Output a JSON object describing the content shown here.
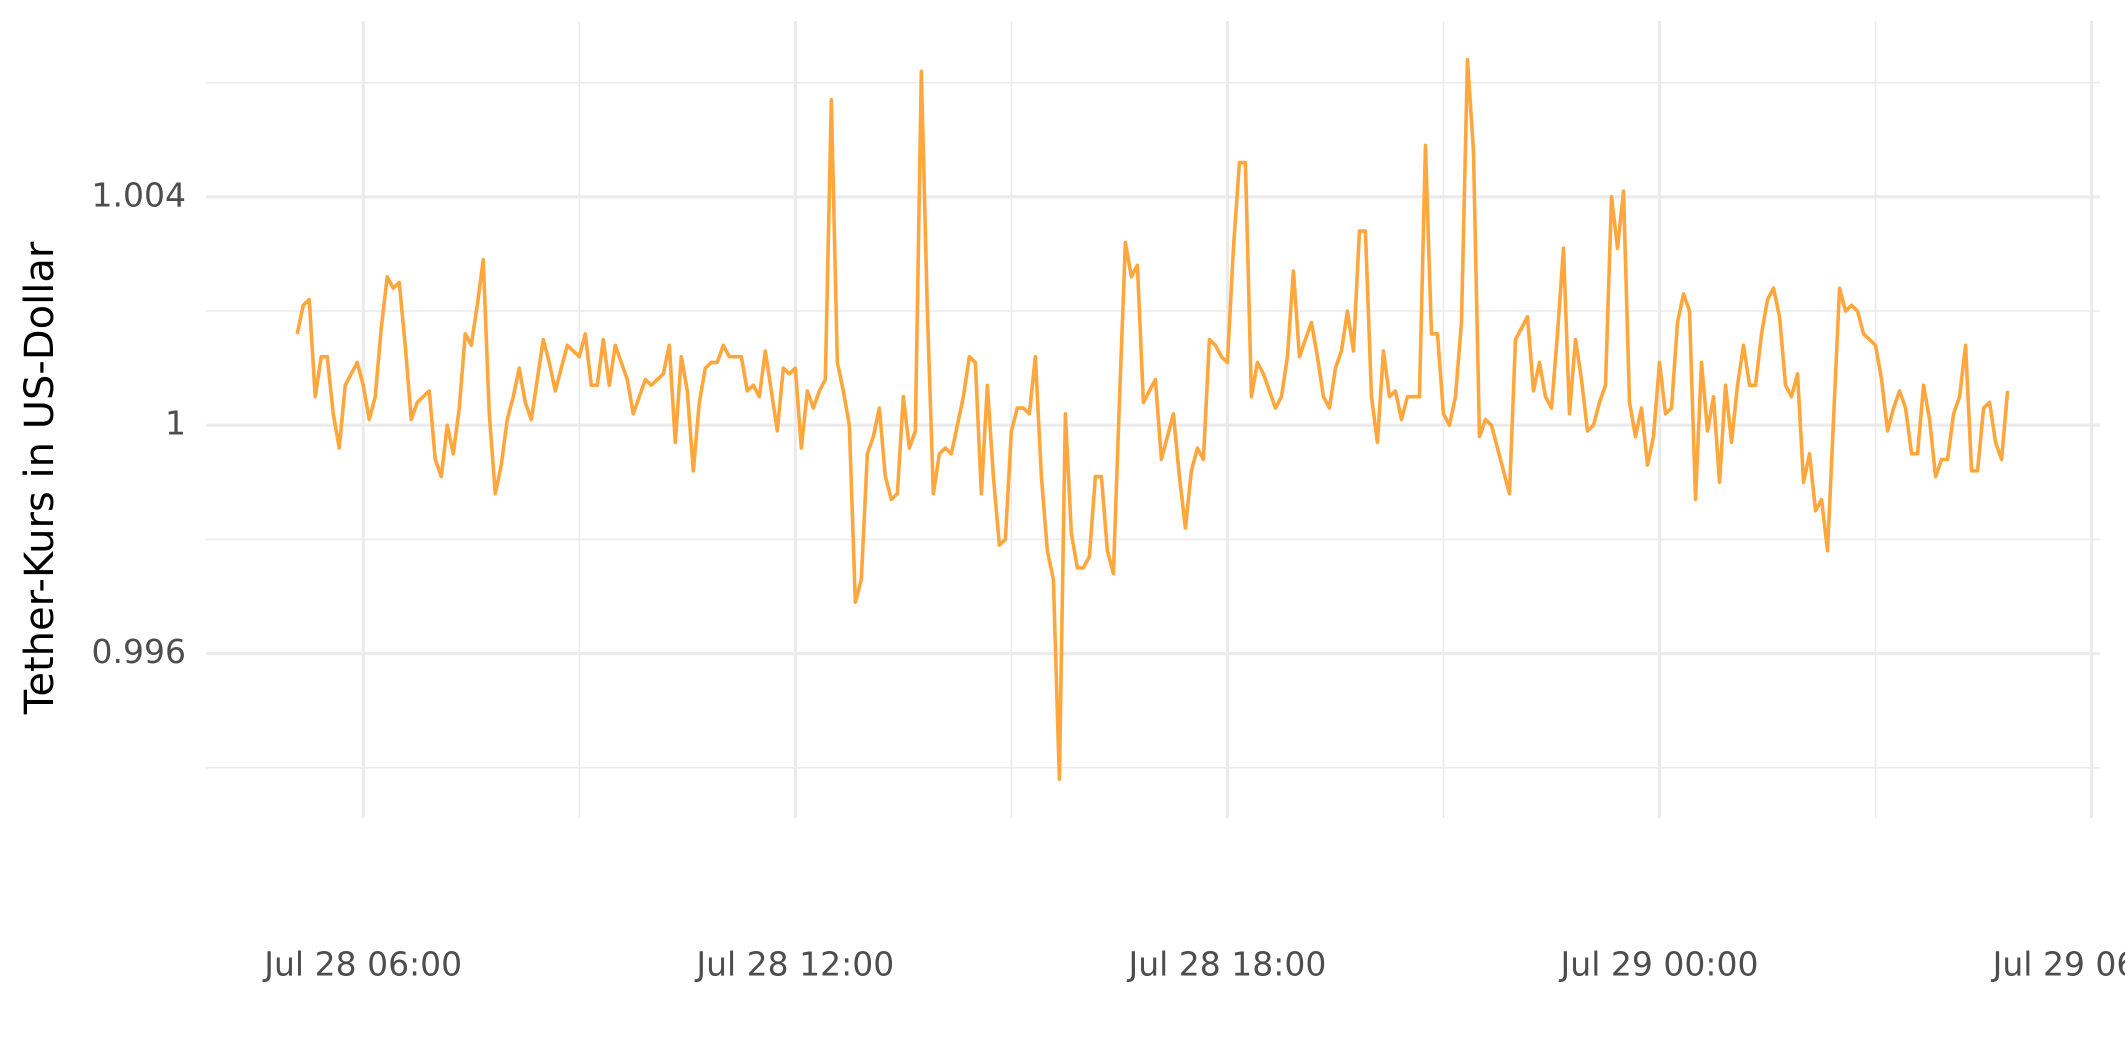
{
  "chart_data": {
    "type": "line",
    "y_label": "Tether-Kurs in US-Dollar",
    "xlim": [
      "Jul 28 03:49",
      "Jul 29 06:07"
    ],
    "xticks": [
      "Jul 28 06:00",
      "Jul 28 12:00",
      "Jul 28 18:00",
      "Jul 29 00:00",
      "Jul 29 06:00"
    ],
    "x_minor_ticks": [
      "Jul 28 09:00",
      "Jul 28 15:00",
      "Jul 28 21:00",
      "Jul 29 03:00"
    ],
    "ylim": [
      0.99312,
      1.00708
    ],
    "yticks": [
      0.996,
      1.0,
      1.004
    ],
    "y_minor_ticks": [
      0.994,
      0.998,
      1.002,
      1.006
    ],
    "grid": true,
    "x": [
      "Jul 28 05:05",
      "Jul 28 05:10",
      "Jul 28 05:15",
      "Jul 28 05:20",
      "Jul 28 05:25",
      "Jul 28 05:30",
      "Jul 28 05:35",
      "Jul 28 05:40",
      "Jul 28 05:45",
      "Jul 28 05:50",
      "Jul 28 05:55",
      "Jul 28 06:00",
      "Jul 28 06:05",
      "Jul 28 06:10",
      "Jul 28 06:15",
      "Jul 28 06:20",
      "Jul 28 06:25",
      "Jul 28 06:30",
      "Jul 28 06:35",
      "Jul 28 06:40",
      "Jul 28 06:45",
      "Jul 28 06:50",
      "Jul 28 06:55",
      "Jul 28 07:00",
      "Jul 28 07:05",
      "Jul 28 07:10",
      "Jul 28 07:15",
      "Jul 28 07:20",
      "Jul 28 07:25",
      "Jul 28 07:30",
      "Jul 28 07:35",
      "Jul 28 07:40",
      "Jul 28 07:45",
      "Jul 28 07:50",
      "Jul 28 07:55",
      "Jul 28 08:00",
      "Jul 28 08:05",
      "Jul 28 08:10",
      "Jul 28 08:15",
      "Jul 28 08:20",
      "Jul 28 08:25",
      "Jul 28 08:30",
      "Jul 28 08:35",
      "Jul 28 08:40",
      "Jul 28 08:45",
      "Jul 28 08:50",
      "Jul 28 08:55",
      "Jul 28 09:00",
      "Jul 28 09:05",
      "Jul 28 09:10",
      "Jul 28 09:15",
      "Jul 28 09:20",
      "Jul 28 09:25",
      "Jul 28 09:30",
      "Jul 28 09:35",
      "Jul 28 09:40",
      "Jul 28 09:45",
      "Jul 28 09:50",
      "Jul 28 09:55",
      "Jul 28 10:00",
      "Jul 28 10:05",
      "Jul 28 10:10",
      "Jul 28 10:15",
      "Jul 28 10:20",
      "Jul 28 10:25",
      "Jul 28 10:30",
      "Jul 28 10:35",
      "Jul 28 10:40",
      "Jul 28 10:45",
      "Jul 28 10:50",
      "Jul 28 10:55",
      "Jul 28 11:00",
      "Jul 28 11:05",
      "Jul 28 11:10",
      "Jul 28 11:15",
      "Jul 28 11:20",
      "Jul 28 11:25",
      "Jul 28 11:30",
      "Jul 28 11:35",
      "Jul 28 11:40",
      "Jul 28 11:45",
      "Jul 28 11:50",
      "Jul 28 11:55",
      "Jul 28 12:00",
      "Jul 28 12:05",
      "Jul 28 12:10",
      "Jul 28 12:15",
      "Jul 28 12:20",
      "Jul 28 12:25",
      "Jul 28 12:30",
      "Jul 28 12:35",
      "Jul 28 12:40",
      "Jul 28 12:45",
      "Jul 28 12:50",
      "Jul 28 12:55",
      "Jul 28 13:00",
      "Jul 28 13:05",
      "Jul 28 13:10",
      "Jul 28 13:15",
      "Jul 28 13:20",
      "Jul 28 13:25",
      "Jul 28 13:30",
      "Jul 28 13:35",
      "Jul 28 13:40",
      "Jul 28 13:45",
      "Jul 28 13:50",
      "Jul 28 13:55",
      "Jul 28 14:00",
      "Jul 28 14:05",
      "Jul 28 14:10",
      "Jul 28 14:15",
      "Jul 28 14:20",
      "Jul 28 14:25",
      "Jul 28 14:30",
      "Jul 28 14:35",
      "Jul 28 14:40",
      "Jul 28 14:45",
      "Jul 28 14:50",
      "Jul 28 14:55",
      "Jul 28 15:00",
      "Jul 28 15:05",
      "Jul 28 15:10",
      "Jul 28 15:15",
      "Jul 28 15:20",
      "Jul 28 15:25",
      "Jul 28 15:30",
      "Jul 28 15:35",
      "Jul 28 15:40",
      "Jul 28 15:45",
      "Jul 28 15:50",
      "Jul 28 15:55",
      "Jul 28 16:00",
      "Jul 28 16:05",
      "Jul 28 16:10",
      "Jul 28 16:15",
      "Jul 28 16:20",
      "Jul 28 16:25",
      "Jul 28 16:30",
      "Jul 28 16:35",
      "Jul 28 16:40",
      "Jul 28 16:45",
      "Jul 28 16:50",
      "Jul 28 16:55",
      "Jul 28 17:00",
      "Jul 28 17:05",
      "Jul 28 17:10",
      "Jul 28 17:15",
      "Jul 28 17:20",
      "Jul 28 17:25",
      "Jul 28 17:30",
      "Jul 28 17:35",
      "Jul 28 17:40",
      "Jul 28 17:45",
      "Jul 28 17:50",
      "Jul 28 17:55",
      "Jul 28 18:00",
      "Jul 28 18:05",
      "Jul 28 18:10",
      "Jul 28 18:15",
      "Jul 28 18:20",
      "Jul 28 18:25",
      "Jul 28 18:30",
      "Jul 28 18:35",
      "Jul 28 18:40",
      "Jul 28 18:45",
      "Jul 28 18:50",
      "Jul 28 18:55",
      "Jul 28 19:00",
      "Jul 28 19:05",
      "Jul 28 19:10",
      "Jul 28 19:15",
      "Jul 28 19:20",
      "Jul 28 19:25",
      "Jul 28 19:30",
      "Jul 28 19:35",
      "Jul 28 19:40",
      "Jul 28 19:45",
      "Jul 28 19:50",
      "Jul 28 19:55",
      "Jul 28 20:00",
      "Jul 28 20:05",
      "Jul 28 20:10",
      "Jul 28 20:15",
      "Jul 28 20:20",
      "Jul 28 20:25",
      "Jul 28 20:30",
      "Jul 28 20:35",
      "Jul 28 20:40",
      "Jul 28 20:45",
      "Jul 28 20:50",
      "Jul 28 20:55",
      "Jul 28 21:00",
      "Jul 28 21:05",
      "Jul 28 21:10",
      "Jul 28 21:15",
      "Jul 28 21:20",
      "Jul 28 21:25",
      "Jul 28 21:30",
      "Jul 28 21:35",
      "Jul 28 21:40",
      "Jul 28 21:45",
      "Jul 28 21:50",
      "Jul 28 21:55",
      "Jul 28 22:00",
      "Jul 28 22:05",
      "Jul 28 22:10",
      "Jul 28 22:15",
      "Jul 28 22:20",
      "Jul 28 22:25",
      "Jul 28 22:30",
      "Jul 28 22:35",
      "Jul 28 22:40",
      "Jul 28 22:45",
      "Jul 28 22:50",
      "Jul 28 22:55",
      "Jul 28 23:00",
      "Jul 28 23:05",
      "Jul 28 23:10",
      "Jul 28 23:15",
      "Jul 28 23:20",
      "Jul 28 23:25",
      "Jul 28 23:30",
      "Jul 28 23:35",
      "Jul 28 23:40",
      "Jul 28 23:45",
      "Jul 28 23:50",
      "Jul 28 23:55",
      "Jul 29 00:00",
      "Jul 29 00:05",
      "Jul 29 00:10",
      "Jul 29 00:15",
      "Jul 29 00:20",
      "Jul 29 00:25",
      "Jul 29 00:30",
      "Jul 29 00:35",
      "Jul 29 00:40",
      "Jul 29 00:45",
      "Jul 29 00:50",
      "Jul 29 00:55",
      "Jul 29 01:00",
      "Jul 29 01:05",
      "Jul 29 01:10",
      "Jul 29 01:15",
      "Jul 29 01:20",
      "Jul 29 01:25",
      "Jul 29 01:30",
      "Jul 29 01:35",
      "Jul 29 01:40",
      "Jul 29 01:45",
      "Jul 29 01:50",
      "Jul 29 01:55",
      "Jul 29 02:00",
      "Jul 29 02:05",
      "Jul 29 02:10",
      "Jul 29 02:15",
      "Jul 29 02:20",
      "Jul 29 02:25",
      "Jul 29 02:30",
      "Jul 29 02:35",
      "Jul 29 02:40",
      "Jul 29 02:45",
      "Jul 29 02:50",
      "Jul 29 02:55",
      "Jul 29 03:00",
      "Jul 29 03:05",
      "Jul 29 03:10",
      "Jul 29 03:15",
      "Jul 29 03:20",
      "Jul 29 03:25",
      "Jul 29 03:30",
      "Jul 29 03:35",
      "Jul 29 03:40",
      "Jul 29 03:45",
      "Jul 29 03:50",
      "Jul 29 03:55",
      "Jul 29 04:00",
      "Jul 29 04:05",
      "Jul 29 04:10",
      "Jul 29 04:15",
      "Jul 29 04:20",
      "Jul 29 04:25",
      "Jul 29 04:30",
      "Jul 29 04:35",
      "Jul 29 04:40",
      "Jul 29 04:45",
      "Jul 29 04:50"
    ],
    "color": "#ffa73c",
    "values": [
      1.0016,
      1.0021,
      1.0022,
      1.0005,
      1.0012,
      1.0012,
      1.0002,
      0.9996,
      1.0007,
      1.0009,
      1.0011,
      1.0007,
      1.0001,
      1.0005,
      1.0017,
      1.0026,
      1.0024,
      1.0025,
      1.0014,
      1.0001,
      1.0004,
      1.0005,
      1.0006,
      0.9994,
      0.9991,
      1.0,
      0.9995,
      1.0003,
      1.0016,
      1.0014,
      1.0021,
      1.0029,
      1.0002,
      0.9988,
      0.9993,
      1.0001,
      1.0005,
      1.001,
      1.0004,
      1.0001,
      1.0008,
      1.0015,
      1.0011,
      1.0006,
      1.001,
      1.0014,
      1.0013,
      1.0012,
      1.0016,
      1.0007,
      1.0007,
      1.0015,
      1.0007,
      1.0014,
      1.0011,
      1.0008,
      1.0002,
      1.0005,
      1.0008,
      1.0007,
      1.0008,
      1.0009,
      1.0014,
      0.9997,
      1.0012,
      1.0006,
      0.9992,
      1.0004,
      1.001,
      1.0011,
      1.0011,
      1.0014,
      1.0012,
      1.0012,
      1.0012,
      1.0006,
      1.0007,
      1.0005,
      1.0013,
      1.0006,
      0.9999,
      1.001,
      1.0009,
      1.001,
      0.9996,
      1.0006,
      1.0003,
      1.0006,
      1.0008,
      1.0057,
      1.0011,
      1.0006,
      1.0,
      0.9969,
      0.9973,
      0.9995,
      0.9998,
      1.0003,
      0.9991,
      0.9987,
      0.9988,
      1.0005,
      0.9996,
      0.9999,
      1.0062,
      1.002,
      0.9988,
      0.9995,
      0.9996,
      0.9995,
      1.0,
      1.0005,
      1.0012,
      1.0011,
      0.9988,
      1.0007,
      0.9991,
      0.9979,
      0.998,
      0.9999,
      1.0003,
      1.0003,
      1.0002,
      1.0012,
      0.9991,
      0.9978,
      0.9973,
      0.9938,
      1.0002,
      0.9981,
      0.9975,
      0.9975,
      0.9977,
      0.9991,
      0.9991,
      0.9978,
      0.9974,
      1.0004,
      1.0032,
      1.0026,
      1.0028,
      1.0004,
      1.0006,
      1.0008,
      0.9994,
      0.9998,
      1.0002,
      0.9991,
      0.9982,
      0.9992,
      0.9996,
      0.9994,
      1.0015,
      1.0014,
      1.0012,
      1.0011,
      1.0031,
      1.0046,
      1.0046,
      1.0005,
      1.0011,
      1.0009,
      1.0006,
      1.0003,
      1.0005,
      1.0012,
      1.0027,
      1.0012,
      1.0015,
      1.0018,
      1.0012,
      1.0005,
      1.0003,
      1.001,
      1.0013,
      1.002,
      1.0013,
      1.0034,
      1.0034,
      1.0005,
      0.9997,
      1.0013,
      1.0005,
      1.0006,
      1.0001,
      1.0005,
      1.0005,
      1.0005,
      1.0049,
      1.0016,
      1.0016,
      1.0002,
      1.0,
      1.0005,
      1.0018,
      1.0064,
      1.0048,
      0.9998,
      1.0001,
      1.0,
      0.9996,
      0.9992,
      0.9988,
      1.0015,
      1.0017,
      1.0019,
      1.0006,
      1.0011,
      1.0005,
      1.0003,
      1.0016,
      1.0031,
      1.0002,
      1.0015,
      1.0008,
      0.9999,
      1.0,
      1.0004,
      1.0007,
      1.004,
      1.0031,
      1.0041,
      1.0004,
      0.9998,
      1.0003,
      0.9993,
      0.9998,
      1.0011,
      1.0002,
      1.0003,
      1.0018,
      1.0023,
      1.002,
      0.9987,
      1.0011,
      0.9999,
      1.0005,
      0.999,
      1.0007,
      0.9997,
      1.0007,
      1.0014,
      1.0007,
      1.0007,
      1.0016,
      1.0022,
      1.0024,
      1.0019,
      1.0007,
      1.0005,
      1.0009,
      0.999,
      0.9995,
      0.9985,
      0.9987,
      0.9978,
      1.0001,
      1.0024,
      1.002,
      1.0021,
      1.002,
      1.0016,
      1.0015,
      1.0014,
      1.0008,
      0.9999,
      1.0003,
      1.0006,
      1.0003,
      0.9995,
      0.9995,
      1.0007,
      1.0001,
      0.9991,
      0.9994,
      0.9994,
      1.0002,
      1.0005,
      1.0014,
      0.9992,
      0.9992,
      1.0003,
      1.0004,
      0.9997,
      0.9994,
      1.0006
    ]
  }
}
